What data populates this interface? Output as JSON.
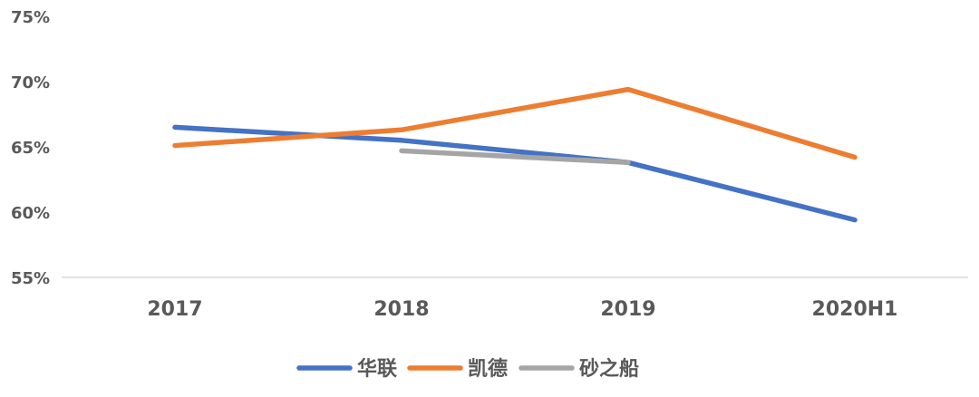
{
  "chart_data": {
    "type": "line",
    "categories": [
      "2017",
      "2018",
      "2019",
      "2020H1"
    ],
    "ylim": [
      55,
      75
    ],
    "yticks": [
      "55%",
      "60%",
      "65%",
      "70%",
      "75%"
    ],
    "ytick_values": [
      55,
      60,
      65,
      70,
      75
    ],
    "grid": false,
    "legend_position": "bottom",
    "series": [
      {
        "name": "华联",
        "color": "#4472C4",
        "values": [
          66.5,
          65.5,
          63.8,
          59.4
        ]
      },
      {
        "name": "凯德",
        "color": "#ED7D31",
        "values": [
          65.1,
          66.3,
          69.4,
          64.2
        ]
      },
      {
        "name": "砂之船",
        "color": "#A5A5A5",
        "values": [
          null,
          64.7,
          63.8,
          null
        ]
      }
    ]
  }
}
